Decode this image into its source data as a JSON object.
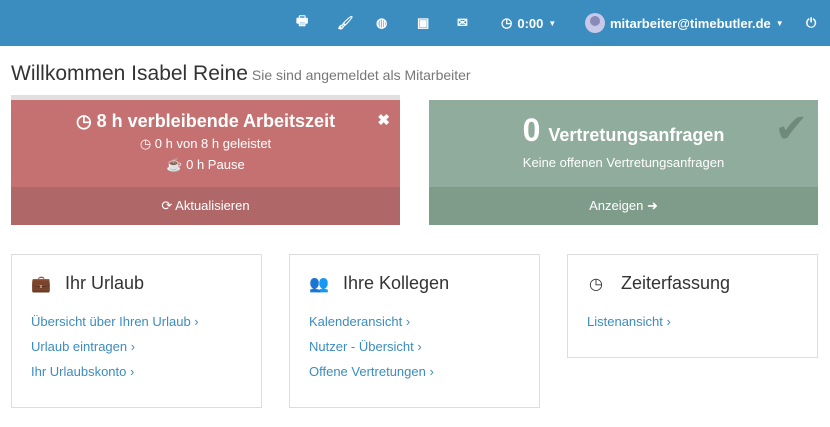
{
  "nav": {
    "time": "0:00",
    "user": "mitarbeiter@timebutler.de"
  },
  "header": {
    "title": "Willkommen Isabel Reine",
    "subtitle": "Sie sind angemeldet als Mitarbeiter"
  },
  "work": {
    "title": "8 h verbleibende Arbeitszeit",
    "done": "0 h von 8 h geleistet",
    "pause": "0 h Pause",
    "refresh": "Aktualisieren"
  },
  "subs": {
    "count": "0",
    "title": "Vertretungsanfragen",
    "text": "Keine offenen Vertretungsanfragen",
    "show": "Anzeigen"
  },
  "cards": [
    {
      "title": "Ihr Urlaub",
      "links": [
        "Übersicht über Ihren Urlaub ›",
        "Urlaub eintragen ›",
        "Ihr Urlaubskonto ›"
      ]
    },
    {
      "title": "Ihre Kollegen",
      "links": [
        "Kalenderansicht ›",
        "Nutzer - Übersicht ›",
        "Offene Vertretungen ›"
      ]
    },
    {
      "title": "Zeiterfassung",
      "links": [
        "Listenansicht ›"
      ]
    }
  ],
  "colors": {
    "nav": "#3b8cbf",
    "work": "#c67171",
    "subs": "#8fac9c"
  }
}
